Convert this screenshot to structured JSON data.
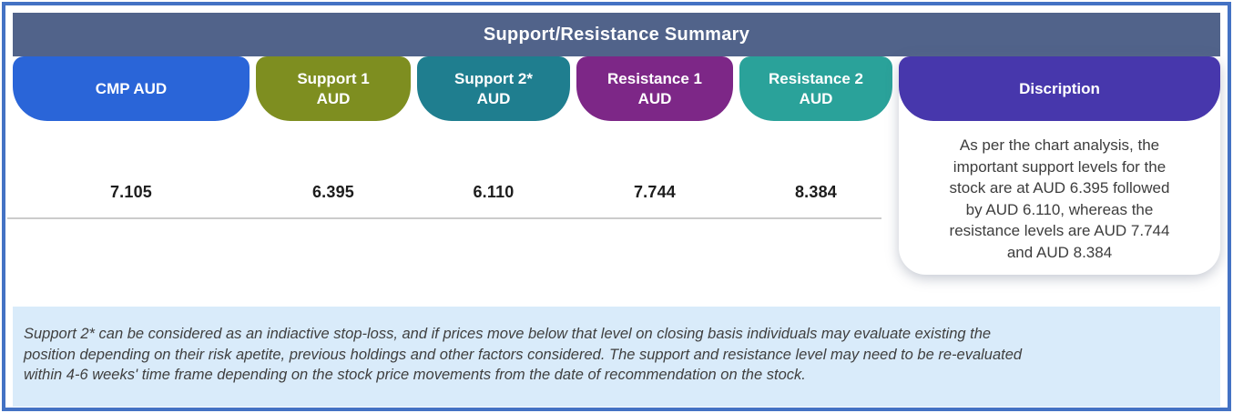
{
  "title": "Support/Resistance Summary",
  "columns": [
    {
      "label": "CMP AUD",
      "color": "#2a65d8",
      "value": "7.105"
    },
    {
      "label": "Support 1\nAUD",
      "color": "#7e8e20",
      "value": "6.395"
    },
    {
      "label": "Support 2*\nAUD",
      "color": "#1f7e8f",
      "value": "6.110"
    },
    {
      "label": "Resistance 1\nAUD",
      "color": "#7d2787",
      "value": "7.744"
    },
    {
      "label": "Resistance 2\nAUD",
      "color": "#2aa29a",
      "value": "8.384"
    }
  ],
  "description": {
    "label": "Discription",
    "color": "#4737ac",
    "text": "As per the chart analysis, the\nimportant support levels for the\nstock are at AUD 6.395  followed\nby AUD 6.110, whereas the\nresistance levels are AUD 7.744\nand AUD 8.384"
  },
  "footnote": {
    "text": "Support 2* can be considered as an indiactive stop-loss, and if prices move below that level on closing basis individuals may evaluate existing the\nposition depending on their risk apetite, previous holdings and other factors considered. The support and resistance level may need to be re-evaluated\nwithin 4-6 weeks' time frame depending on the stock price movements from  the date of recommendation on the stock."
  },
  "colors": {
    "title_bar": "#51638a",
    "outer_border": "#4472c4",
    "footnote_bg": "#d9ebfa",
    "divider": "#cccccc",
    "value_text": "#1d1d1d",
    "description_text": "#3d3d3d"
  }
}
